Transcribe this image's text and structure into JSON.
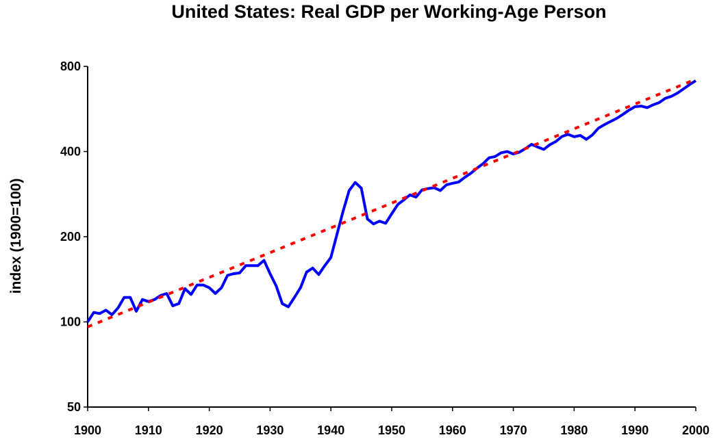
{
  "chart_data": {
    "type": "line",
    "title": "United States: Real GDP per Working-Age Person",
    "xlabel": "",
    "ylabel": "index (1900=100)",
    "xlim": [
      1900,
      2000
    ],
    "ylim": [
      50,
      800
    ],
    "y_scale": "log",
    "grid": false,
    "legend": "none",
    "x_ticks": [
      "1900",
      "1910",
      "1920",
      "1930",
      "1940",
      "1950",
      "1960",
      "1970",
      "1980",
      "1990",
      "2000"
    ],
    "y_ticks": [
      "50",
      "100",
      "200",
      "400",
      "800"
    ],
    "series": [
      {
        "color": "#0000ff",
        "style": "solid",
        "x": [
          1900,
          1901,
          1902,
          1903,
          1904,
          1905,
          1906,
          1907,
          1908,
          1909,
          1910,
          1911,
          1912,
          1913,
          1914,
          1915,
          1916,
          1917,
          1918,
          1919,
          1920,
          1921,
          1922,
          1923,
          1924,
          1925,
          1926,
          1927,
          1928,
          1929,
          1930,
          1931,
          1932,
          1933,
          1934,
          1935,
          1936,
          1937,
          1938,
          1939,
          1940,
          1941,
          1942,
          1943,
          1944,
          1945,
          1946,
          1947,
          1948,
          1949,
          1950,
          1951,
          1952,
          1953,
          1954,
          1955,
          1956,
          1957,
          1958,
          1959,
          1960,
          1961,
          1962,
          1963,
          1964,
          1965,
          1966,
          1967,
          1968,
          1969,
          1970,
          1971,
          1972,
          1973,
          1974,
          1975,
          1976,
          1977,
          1978,
          1979,
          1980,
          1981,
          1982,
          1983,
          1984,
          1985,
          1986,
          1987,
          1988,
          1989,
          1990,
          1991,
          1992,
          1993,
          1994,
          1995,
          1996,
          1997,
          1998,
          1999,
          2000
        ],
        "y": [
          100,
          108,
          107,
          110,
          106,
          112,
          122,
          122,
          109,
          120,
          118,
          120,
          124,
          126,
          114,
          116,
          131,
          125,
          135,
          135,
          132,
          126,
          132,
          146,
          148,
          149,
          158,
          158,
          158,
          165,
          148,
          134,
          116,
          113,
          122,
          132,
          150,
          155,
          147,
          158,
          169,
          204,
          246,
          291,
          311,
          297,
          231,
          222,
          227,
          223,
          241,
          260,
          270,
          281,
          276,
          293,
          296,
          298,
          291,
          305,
          309,
          312,
          324,
          335,
          349,
          362,
          380,
          384,
          396,
          400,
          392,
          398,
          410,
          424,
          415,
          407,
          423,
          434,
          452,
          460,
          451,
          456,
          442,
          458,
          484,
          498,
          511,
          524,
          541,
          560,
          576,
          579,
          572,
          585,
          596,
          617,
          627,
          644,
          666,
          690,
          712
        ]
      },
      {
        "color": "#ff0000",
        "style": "dotted",
        "x": [
          1900,
          2000
        ],
        "y": [
          96,
          720
        ]
      }
    ]
  }
}
